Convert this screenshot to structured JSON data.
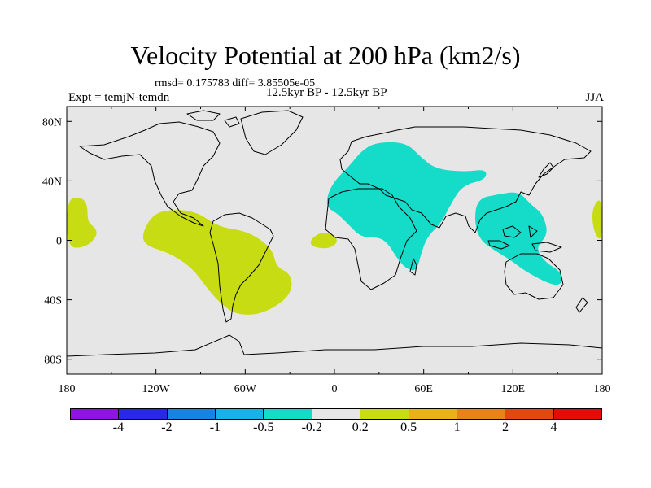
{
  "figure": {
    "title": "Velocity Potential at 200 hPa (km2/s)",
    "stats": "rmsd= 0.175783 diff= 3.85505e-05",
    "left_label": "Expt = temjN-temdn",
    "center_label": "12.5kyr BP - 12.5kyr BP",
    "right_label": "JJA"
  },
  "chart_data": {
    "type": "contour-map",
    "projection": "cylindrical-equidistant",
    "x_range": [
      -180,
      180
    ],
    "y_range": [
      -90,
      90
    ],
    "x_ticks": [
      -180,
      -120,
      -60,
      0,
      60,
      120,
      180
    ],
    "x_tick_labels": [
      "180",
      "120W",
      "60W",
      "0",
      "60E",
      "120E",
      "180"
    ],
    "y_ticks": [
      80,
      40,
      0,
      -40,
      -80
    ],
    "y_tick_labels": [
      "80N",
      "40N",
      "0",
      "40S",
      "80S"
    ],
    "colorbar": {
      "colors": [
        "#8c14e6",
        "#2828e6",
        "#1484e6",
        "#14b4e6",
        "#14dcc8",
        "#e6e6e6",
        "#c8dc14",
        "#e6b414",
        "#e68414",
        "#e64614",
        "#e60a0a"
      ],
      "levels": [
        -4,
        -2,
        -1,
        -0.5,
        -0.2,
        0.2,
        0.5,
        1,
        2,
        4
      ],
      "level_labels": [
        "-4",
        "-2",
        "-1",
        "-0.5",
        "-0.2",
        "0.2",
        "0.5",
        "1",
        "2",
        "4"
      ]
    },
    "regions": [
      {
        "name": "eurasia-africa-negative",
        "category": "-0.5 to -0.2",
        "color": "#14dcc8",
        "lonlat": [
          [
            -5,
            30
          ],
          [
            0,
            40
          ],
          [
            10,
            50
          ],
          [
            18,
            60
          ],
          [
            28,
            66
          ],
          [
            48,
            66
          ],
          [
            58,
            56
          ],
          [
            68,
            48
          ],
          [
            88,
            46
          ],
          [
            102,
            48
          ],
          [
            102,
            41
          ],
          [
            86,
            37
          ],
          [
            78,
            24
          ],
          [
            72,
            12
          ],
          [
            62,
            2
          ],
          [
            58,
            -10
          ],
          [
            55,
            -21
          ],
          [
            48,
            -19
          ],
          [
            42,
            -12
          ],
          [
            36,
            -2
          ],
          [
            30,
            2
          ],
          [
            18,
            2
          ],
          [
            10,
            10
          ],
          [
            2,
            18
          ],
          [
            -5,
            22
          ]
        ]
      },
      {
        "name": "maritime-continent-negative",
        "category": "-0.5 to -0.2",
        "color": "#14dcc8",
        "lonlat": [
          [
            96,
            28
          ],
          [
            110,
            31
          ],
          [
            124,
            33
          ],
          [
            132,
            24
          ],
          [
            140,
            18
          ],
          [
            144,
            4
          ],
          [
            135,
            -5
          ],
          [
            142,
            -15
          ],
          [
            152,
            -21
          ],
          [
            154,
            -28
          ],
          [
            148,
            -31
          ],
          [
            130,
            -22
          ],
          [
            118,
            -13
          ],
          [
            108,
            -7
          ],
          [
            98,
            0
          ],
          [
            94,
            12
          ]
        ]
      },
      {
        "name": "pacific-left-positive",
        "category": "0.2 to 0.5",
        "color": "#c8dc14",
        "lonlat": [
          [
            -180,
            28
          ],
          [
            -170,
            29
          ],
          [
            -166,
            24
          ],
          [
            -166,
            12
          ],
          [
            -160,
            8
          ],
          [
            -160,
            2
          ],
          [
            -168,
            -5
          ],
          [
            -180,
            -5
          ]
        ]
      },
      {
        "name": "south-america-positive",
        "category": "0.2 to 0.5",
        "color": "#c8dc14",
        "lonlat": [
          [
            -130,
            3
          ],
          [
            -122,
            18
          ],
          [
            -108,
            21
          ],
          [
            -92,
            19
          ],
          [
            -78,
            9
          ],
          [
            -58,
            6
          ],
          [
            -42,
            -5
          ],
          [
            -39,
            -18
          ],
          [
            -30,
            -22
          ],
          [
            -28,
            -32
          ],
          [
            -34,
            -41
          ],
          [
            -50,
            -50
          ],
          [
            -66,
            -50
          ],
          [
            -76,
            -43
          ],
          [
            -85,
            -33
          ],
          [
            -96,
            -18
          ],
          [
            -112,
            -8
          ],
          [
            -126,
            -4
          ]
        ]
      },
      {
        "name": "atlantic-positive",
        "category": "0.2 to 0.5",
        "color": "#c8dc14",
        "lonlat": [
          [
            -16,
            1
          ],
          [
            -8,
            6
          ],
          [
            1,
            3
          ],
          [
            2,
            -2
          ],
          [
            -5,
            -6
          ],
          [
            -16,
            -4
          ]
        ]
      },
      {
        "name": "dateline-right-positive",
        "category": "0.2 to 0.5",
        "color": "#c8dc14",
        "lonlat": [
          [
            180,
            30
          ],
          [
            173,
            22
          ],
          [
            174,
            6
          ],
          [
            180,
            -2
          ]
        ]
      }
    ]
  }
}
